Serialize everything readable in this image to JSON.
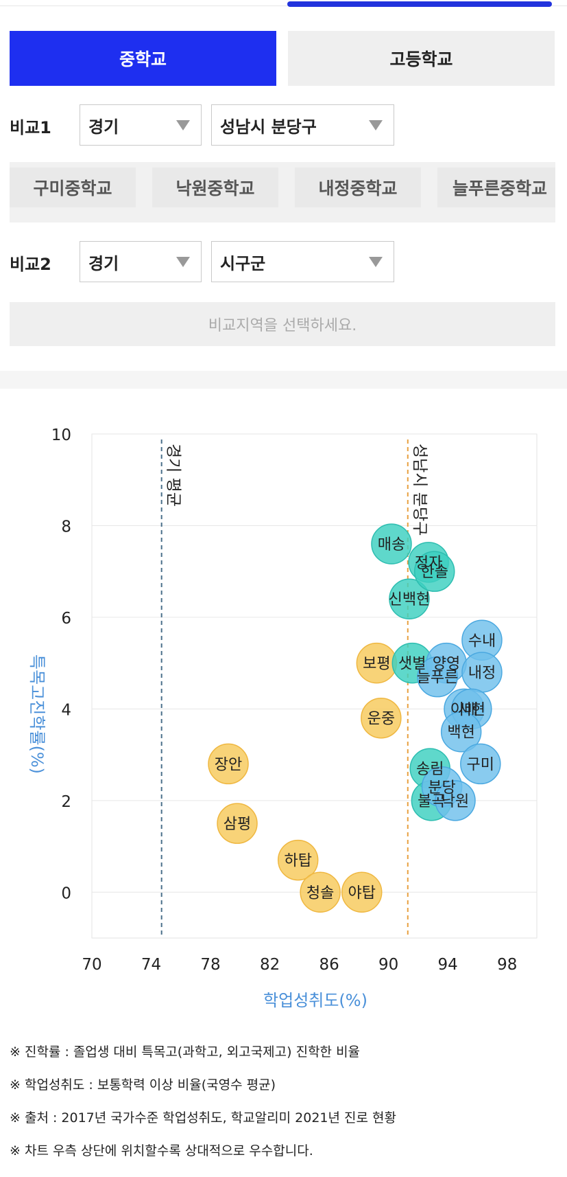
{
  "tabs": [
    {
      "label": "중학교",
      "active": true
    },
    {
      "label": "고등학교",
      "active": false
    }
  ],
  "compare1": {
    "label": "비교1",
    "province": "경기",
    "district": "성남시 분당구",
    "schools": [
      "구미중학교",
      "낙원중학교",
      "내정중학교",
      "늘푸른중학교"
    ]
  },
  "compare2": {
    "label": "비교2",
    "province": "경기",
    "district": "시구군",
    "placeholder": "비교지역을 선택하세요."
  },
  "colors": {
    "accent": "#1e2ff0",
    "yellow": "#f7c95a",
    "teal": "#3fcfc2",
    "blue": "#6fc0ec"
  },
  "chart_data": {
    "type": "scatter",
    "xlabel": "학업성취도(%)",
    "ylabel": "특목고진학률(%)",
    "xlim": [
      70,
      100
    ],
    "ylim": [
      -1,
      10
    ],
    "xticks": [
      70,
      74,
      78,
      82,
      86,
      90,
      94,
      98
    ],
    "yticks": [
      0,
      2,
      4,
      6,
      8,
      10
    ],
    "grid": true,
    "ref_lines": [
      {
        "label": "경기 평균",
        "x": 74.7,
        "color": "#4a6f8a"
      },
      {
        "label": "성남시 분당구",
        "x": 91.3,
        "color": "#e8a040"
      }
    ],
    "points": [
      {
        "label": "장안",
        "x": 79.2,
        "y": 2.8,
        "group": "yellow"
      },
      {
        "label": "삼평",
        "x": 79.8,
        "y": 1.5,
        "group": "yellow"
      },
      {
        "label": "하탑",
        "x": 83.9,
        "y": 0.7,
        "group": "yellow"
      },
      {
        "label": "청솔",
        "x": 85.4,
        "y": 0.0,
        "group": "yellow"
      },
      {
        "label": "야탑",
        "x": 88.2,
        "y": 0.0,
        "group": "yellow"
      },
      {
        "label": "운중",
        "x": 89.5,
        "y": 3.8,
        "group": "yellow"
      },
      {
        "label": "보평",
        "x": 89.2,
        "y": 5.0,
        "group": "yellow"
      },
      {
        "label": "매송",
        "x": 90.2,
        "y": 7.6,
        "group": "teal"
      },
      {
        "label": "신백현",
        "x": 91.4,
        "y": 6.4,
        "group": "teal"
      },
      {
        "label": "정자",
        "x": 92.7,
        "y": 7.2,
        "group": "teal"
      },
      {
        "label": "한솔",
        "x": 93.1,
        "y": 7.0,
        "group": "teal"
      },
      {
        "label": "샛별",
        "x": 91.6,
        "y": 5.0,
        "group": "teal"
      },
      {
        "label": "송림",
        "x": 92.8,
        "y": 2.7,
        "group": "teal"
      },
      {
        "label": "불곡",
        "x": 92.9,
        "y": 2.0,
        "group": "teal"
      },
      {
        "label": "양영",
        "x": 93.9,
        "y": 5.0,
        "group": "blue"
      },
      {
        "label": "늘푸른",
        "x": 93.3,
        "y": 4.7,
        "group": "blue"
      },
      {
        "label": "수내",
        "x": 96.3,
        "y": 5.5,
        "group": "blue"
      },
      {
        "label": "내정",
        "x": 96.3,
        "y": 4.8,
        "group": "blue"
      },
      {
        "label": "이매",
        "x": 95.1,
        "y": 4.0,
        "group": "blue"
      },
      {
        "label": "서현",
        "x": 95.6,
        "y": 4.0,
        "group": "blue"
      },
      {
        "label": "백현",
        "x": 94.9,
        "y": 3.5,
        "group": "blue"
      },
      {
        "label": "구미",
        "x": 96.2,
        "y": 2.8,
        "group": "blue"
      },
      {
        "label": "분당",
        "x": 93.6,
        "y": 2.3,
        "group": "blue"
      },
      {
        "label": "낙원",
        "x": 94.5,
        "y": 2.0,
        "group": "blue"
      }
    ]
  },
  "notes": [
    "※ 진학률 : 졸업생 대비 특목고(과학고, 외고국제고) 진학한 비율",
    "※ 학업성취도 : 보통학력 이상 비율(국영수 평균)",
    "※ 출처 : 2017년 국가수준 학업성취도, 학교알리미 2021년 진로 현황",
    "※ 차트 우측 상단에 위치할수록 상대적으로 우수합니다."
  ]
}
